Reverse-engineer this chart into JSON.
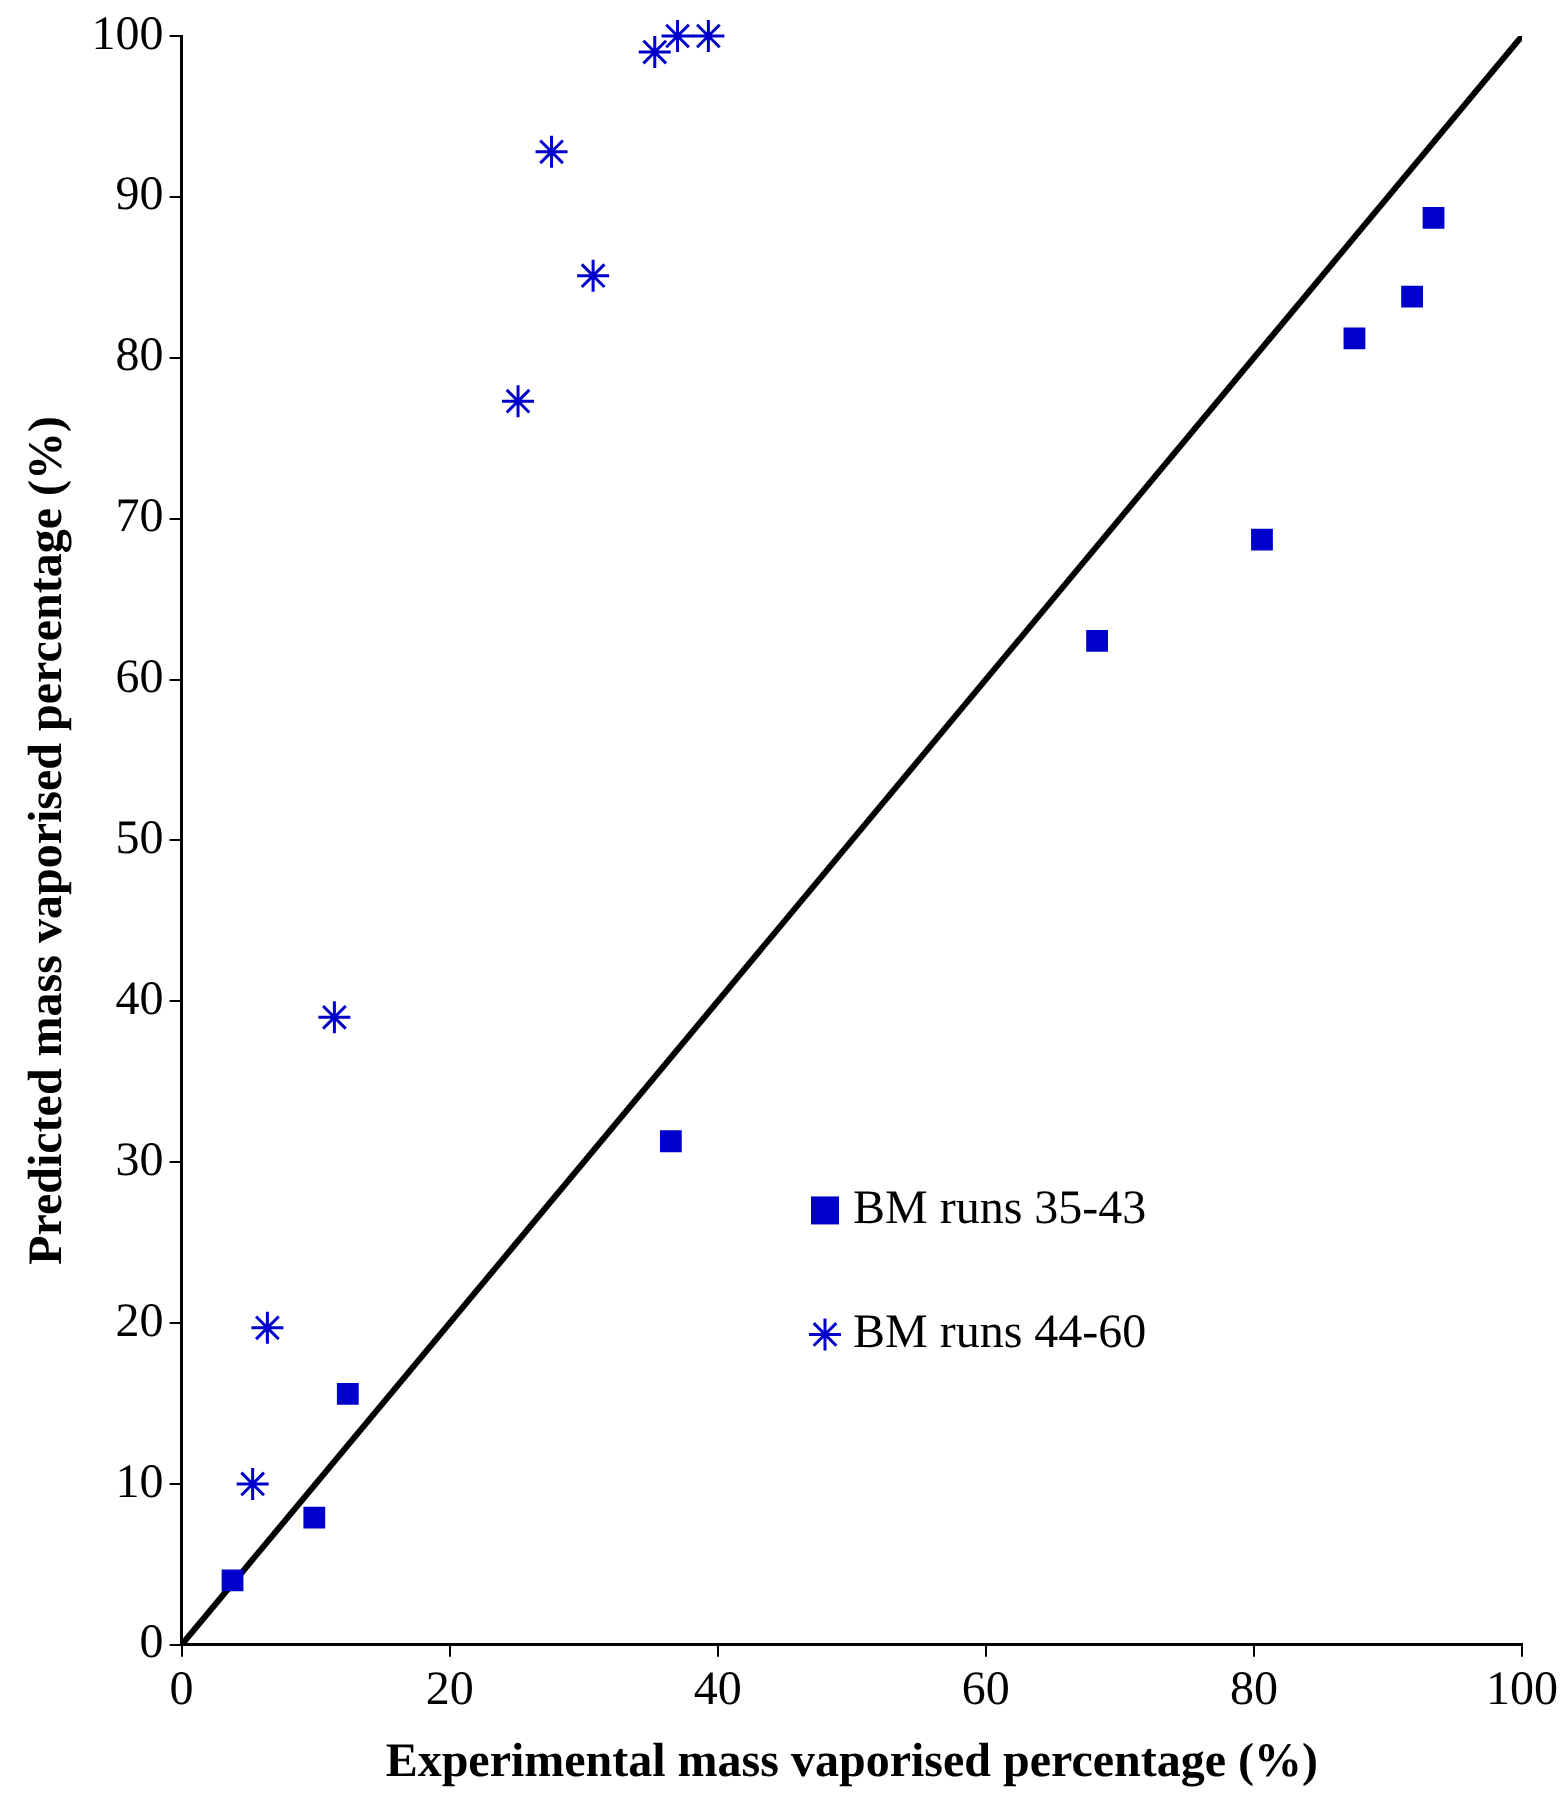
{
  "chart_data": {
    "type": "scatter",
    "xlabel": "Experimental mass vaporised percentage (%)",
    "ylabel": "Predicted mass vaporised percentage (%)",
    "xlim": [
      0,
      100
    ],
    "xticks": [
      0,
      20,
      40,
      60,
      80,
      100
    ],
    "ylim": [
      0,
      100
    ],
    "yticks": [
      0,
      10,
      20,
      30,
      40,
      50,
      60,
      70,
      80,
      90,
      100
    ],
    "grid": false,
    "legend": "right",
    "series": [
      {
        "name": "BM runs 35-43",
        "color": "#0000cc",
        "marker": "square",
        "x": [
          3.8,
          9.9,
          12.4,
          36.5,
          68.3,
          80.6,
          87.5,
          91.8,
          93.4
        ],
        "values": [
          4.0,
          7.9,
          15.6,
          31.3,
          62.4,
          68.7,
          81.2,
          83.8,
          88.7
        ]
      },
      {
        "name": "BM runs 44-60",
        "color": "#0000cc",
        "marker": "cross",
        "x": [
          5.3,
          6.4,
          11.4,
          25.1,
          27.6,
          30.7,
          35.3,
          37.0,
          39.3
        ],
        "values": [
          10.0,
          19.7,
          39.0,
          77.3,
          92.8,
          85.1,
          99.0,
          100,
          100
        ]
      },
      {
        "type": "line",
        "color": "#000000",
        "marker": "none",
        "x": [
          0,
          100
        ],
        "values": [
          0,
          100
        ]
      }
    ]
  }
}
